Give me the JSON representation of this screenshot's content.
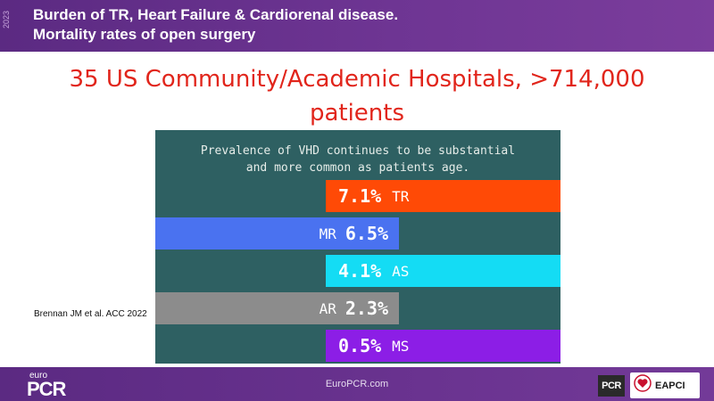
{
  "header": {
    "title_line1": "Burden of TR, Heart Failure & Cardiorenal disease.",
    "title_line2": "Mortality rates of open surgery"
  },
  "subtitle": {
    "line1": "35 US Community/Academic Hospitals, >714,000",
    "line2": "patients"
  },
  "panel": {
    "caption_line1": "Prevalence of VHD continues to be substantial",
    "caption_line2": "and more common as patients age."
  },
  "bars": [
    {
      "label": "TR",
      "pct": "7.1%",
      "value": 7.1,
      "color": "#ff4a06"
    },
    {
      "label": "MR",
      "pct": "6.5%",
      "value": 6.5,
      "color": "#4a72f0"
    },
    {
      "label": "AS",
      "pct": "4.1%",
      "value": 4.1,
      "color": "#14dcf4"
    },
    {
      "label": "AR",
      "pct": "2.3%",
      "value": 2.3,
      "color": "#8c8c8c"
    },
    {
      "label": "MS",
      "pct": "0.5%",
      "value": 0.5,
      "color": "#8c1ee6"
    }
  ],
  "citation": "Brennan JM et al. ACC 2022",
  "footer": {
    "year": "2023",
    "euro": "euro",
    "logo": "PCR",
    "url": "EuroPCR.com",
    "pcr_badge": "PCR",
    "eapci": "EAPCI"
  },
  "colors": {
    "header_purple": "#6a3390",
    "subtitle_red": "#e1251b",
    "panel_teal": "#2e6062"
  },
  "icons": [
    "heart-icon"
  ]
}
